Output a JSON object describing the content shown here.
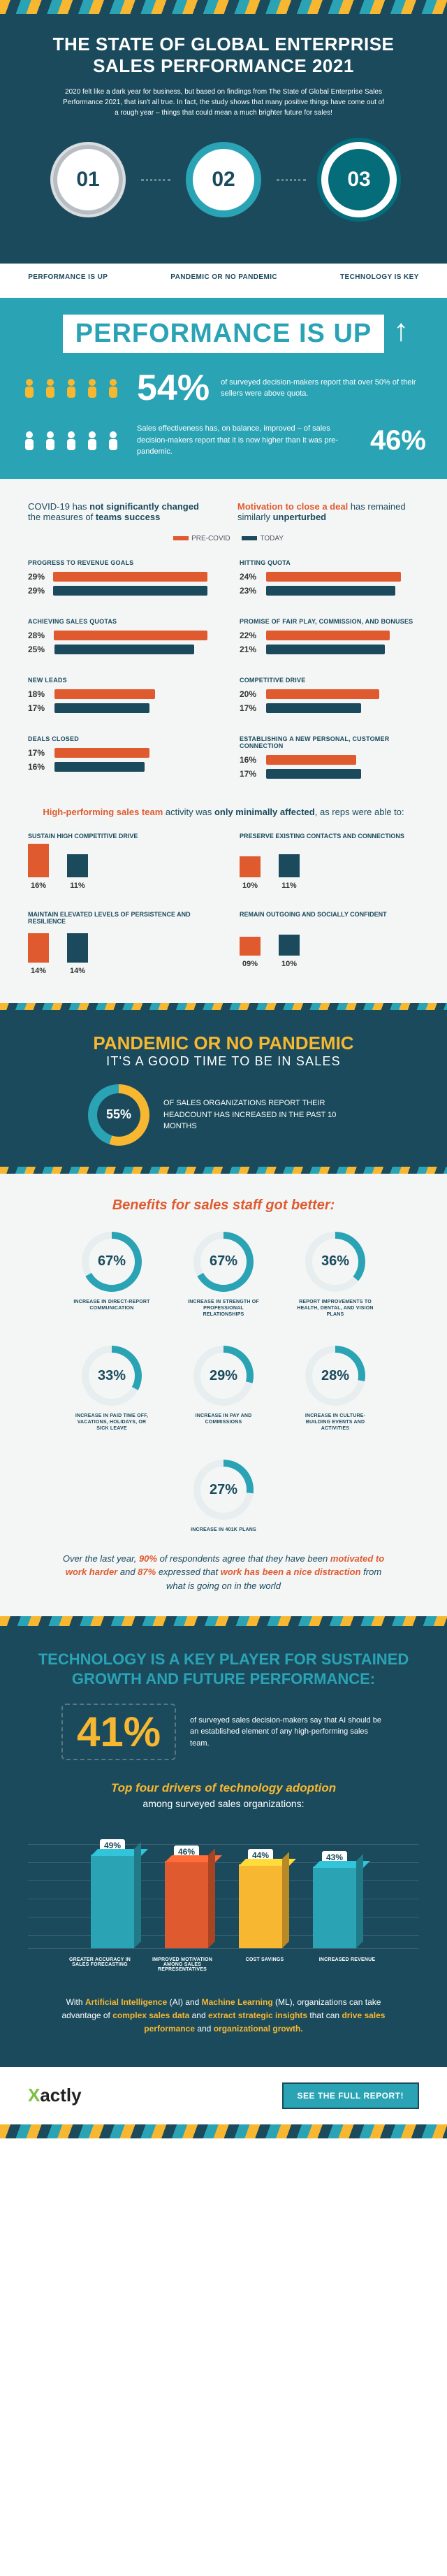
{
  "hero": {
    "title": "THE STATE OF GLOBAL ENTERPRISE SALES PERFORMANCE 2021",
    "subtitle": "2020 felt like a dark year for business, but based on findings from The State of Global Enterprise Sales Performance 2021, that isn't all true. In fact, the study shows that many positive things have come out of a rough year – things that could mean a much brighter future for sales!"
  },
  "steps": {
    "nums": [
      "01",
      "02",
      "03"
    ],
    "labels": [
      "PERFORMANCE IS UP",
      "PANDEMIC OR NO PANDEMIC",
      "TECHNOLOGY IS KEY"
    ]
  },
  "perf": {
    "title": "PERFORMANCE IS UP",
    "stat1_pct": "54%",
    "stat1_text": "of surveyed decision-makers report that over 50% of their sellers were above quota.",
    "stat2_pct": "46%",
    "stat2_text": "Sales effectiveness has, on balance, improved – of sales decision-makers report that it is now higher than it was pre-pandemic.",
    "intro_left": "COVID-19 has not significantly changed the measures of teams success",
    "intro_right": "Motivation to close a deal has remained similarly unperturbed",
    "legend_pre": "PRE-COVID",
    "legend_today": "TODAY",
    "colors": {
      "pre": "#e05a2f",
      "today": "#1a4a5c"
    },
    "bars": [
      {
        "title": "PROGRESS TO REVENUE GOALS",
        "pre": 29,
        "today": 29
      },
      {
        "title": "HITTING QUOTA",
        "pre": 24,
        "today": 23
      },
      {
        "title": "ACHIEVING SALES QUOTAS",
        "pre": 28,
        "today": 25
      },
      {
        "title": "PROMISE OF FAIR PLAY, COMMISSION, AND BONUSES",
        "pre": 22,
        "today": 21
      },
      {
        "title": "NEW LEADS",
        "pre": 18,
        "today": 17
      },
      {
        "title": "COMPETITIVE DRIVE",
        "pre": 20,
        "today": 17
      },
      {
        "title": "DEALS CLOSED",
        "pre": 17,
        "today": 16
      },
      {
        "title": "ESTABLISHING A NEW PERSONAL, CUSTOMER CONNECTION",
        "pre": 16,
        "today": 17
      }
    ],
    "mini_head": "High-performing sales team activity was only minimally affected, as reps were able to:",
    "mini": [
      {
        "title": "SUSTAIN HIGH COMPETITIVE DRIVE",
        "pre": 16,
        "today": 11
      },
      {
        "title": "PRESERVE EXISTING CONTACTS AND CONNECTIONS",
        "pre": 10,
        "today": 11
      },
      {
        "title": "MAINTAIN ELEVATED LEVELS OF PERSISTENCE AND RESILIENCE",
        "pre": 14,
        "today": 14
      },
      {
        "title": "REMAIN OUTGOING AND SOCIALLY CONFIDENT",
        "pre": 9,
        "today": 10,
        "pre_label": "09%"
      }
    ]
  },
  "pandemic": {
    "title": "PANDEMIC OR NO PANDEMIC",
    "subtitle": "IT'S A GOOD TIME TO BE IN SALES",
    "donut_pct": "55%",
    "donut_val": 55,
    "donut_text": "OF SALES ORGANIZATIONS REPORT THEIR HEADCOUNT HAS INCREASED IN THE PAST 10 MONTHS"
  },
  "benefits": {
    "title": "Benefits for sales staff got better:",
    "circle_bg": "#e8edef",
    "ring_color": "#2aa3b5",
    "items": [
      {
        "pct": 67,
        "label": "INCREASE IN DIRECT-REPORT COMMUNICATION"
      },
      {
        "pct": 67,
        "label": "INCREASE IN STRENGTH OF PROFESSIONAL RELATIONSHIPS"
      },
      {
        "pct": 36,
        "label": "REPORT IMPROVEMENTS TO HEALTH, DENTAL, AND VISION PLANS"
      },
      {
        "pct": 33,
        "label": "INCREASE IN PAID TIME OFF, VACATIONS, HOLIDAYS, OR SICK LEAVE"
      },
      {
        "pct": 29,
        "label": "INCREASE IN PAY AND COMMISSIONS"
      },
      {
        "pct": 28,
        "label": "INCREASE IN CULTURE-BUILDING EVENTS AND ACTIVITIES"
      },
      {
        "pct": 27,
        "label": "INCREASE IN 401K PLANS"
      }
    ],
    "footer": "Over the last year, 90% of respondents agree that they have been motivated to work harder and 87% expressed that work has been a nice distraction from what is going on in the world"
  },
  "tech": {
    "title": "TECHNOLOGY IS A KEY PLAYER FOR SUSTAINED GROWTH AND FUTURE PERFORMANCE:",
    "big_pct": "41%",
    "big_text": "of surveyed sales decision-makers say that AI should be an established element of any high-performing sales team.",
    "drivers_h": "Top four drivers of technology adoption",
    "drivers_sub": "among surveyed sales organizations:",
    "bar_colors": [
      "#2aa3b5",
      "#e05a2f",
      "#f7b731",
      "#2aa3b5"
    ],
    "bars": [
      {
        "pct": 49,
        "label": "GREATER ACCURACY IN SALES FORECASTING"
      },
      {
        "pct": 46,
        "label": "IMPROVED MOTIVATION AMONG SALES REPRESENTATIVES"
      },
      {
        "pct": 44,
        "label": "COST SAVINGS"
      },
      {
        "pct": 43,
        "label": "INCREASED REVENUE"
      }
    ],
    "footer": "With Artificial Intelligence (AI) and Machine Learning (ML), organizations can take advantage of complex sales data and extract strategic insights that can drive sales performance and organizational growth."
  },
  "footer": {
    "brand": "Xactly",
    "cta": "SEE THE FULL REPORT!"
  }
}
